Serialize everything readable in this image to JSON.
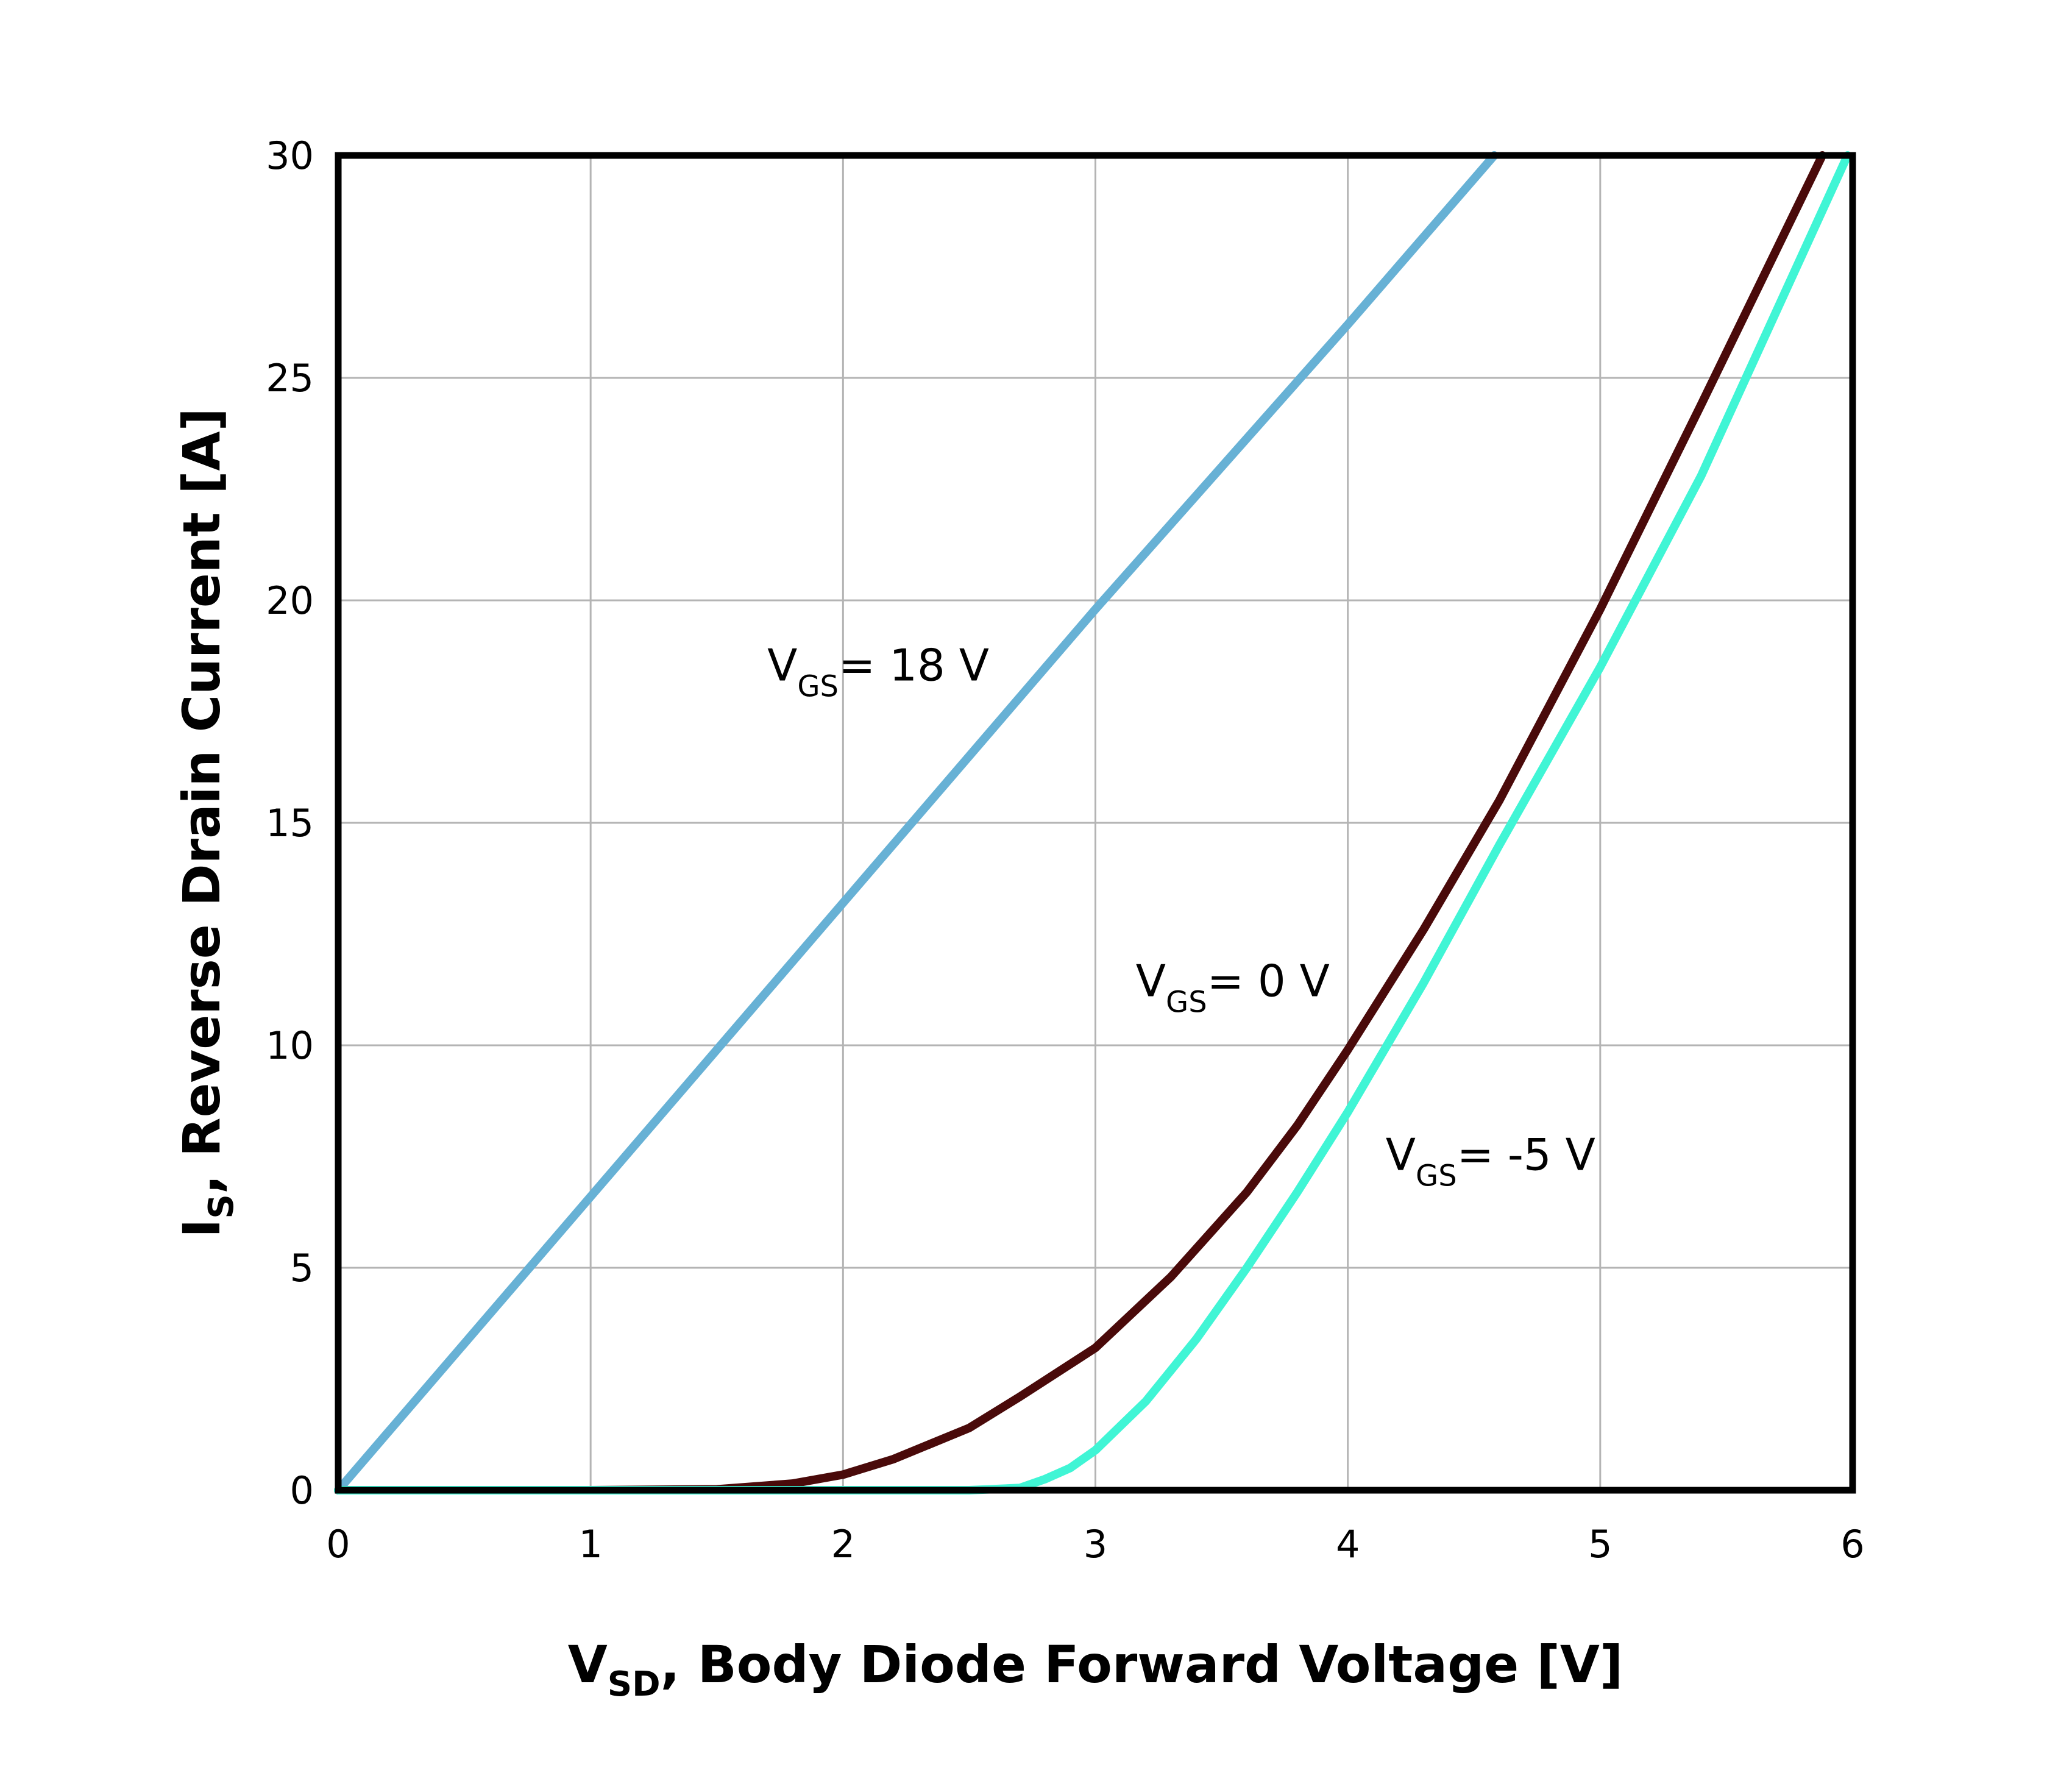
{
  "chart_data": {
    "type": "line",
    "title": "",
    "xlabel": {
      "main": "V",
      "sub": "SD",
      "rest": ", Body Diode Forward Voltage [V]"
    },
    "ylabel": {
      "main": "I",
      "sub": "S",
      "rest": ", Reverse Drain Current [A]"
    },
    "xlim": [
      0,
      6
    ],
    "ylim": [
      0,
      30
    ],
    "xticks": [
      0,
      1,
      2,
      3,
      4,
      5,
      6
    ],
    "yticks": [
      0,
      5,
      10,
      15,
      20,
      25,
      30
    ],
    "xtick_labels": [
      "0",
      "1",
      "2",
      "3",
      "4",
      "5",
      "6"
    ],
    "ytick_labels": [
      "0",
      "5",
      "10",
      "15",
      "20",
      "25",
      "30"
    ],
    "grid": true,
    "legend": "none",
    "series": [
      {
        "key": "vgs18",
        "color": "#67b1d5",
        "x": [
          0,
          1,
          2,
          3,
          4,
          4.58
        ],
        "y": [
          0,
          6.6,
          13.2,
          19.8,
          26.2,
          30
        ]
      },
      {
        "key": "vgs0",
        "color": "#4a0a0a",
        "x": [
          0,
          1,
          1.5,
          1.8,
          2.0,
          2.2,
          2.5,
          2.7,
          3.0,
          3.3,
          3.6,
          3.8,
          4.0,
          4.3,
          4.6,
          5.0,
          5.4,
          5.88
        ],
        "y": [
          0,
          0,
          0.02,
          0.15,
          0.35,
          0.7,
          1.4,
          2.1,
          3.2,
          4.8,
          6.7,
          8.2,
          9.9,
          12.6,
          15.5,
          19.8,
          24.4,
          30
        ]
      },
      {
        "key": "vgsm5",
        "color": "#40f5d5",
        "x": [
          0,
          2.0,
          2.5,
          2.7,
          2.8,
          2.9,
          3.0,
          3.2,
          3.4,
          3.6,
          3.8,
          4.0,
          4.3,
          4.6,
          5.0,
          5.4,
          5.98
        ],
        "y": [
          0,
          0,
          0,
          0.05,
          0.25,
          0.5,
          0.9,
          2.0,
          3.4,
          5.0,
          6.7,
          8.5,
          11.4,
          14.5,
          18.5,
          22.8,
          30
        ]
      }
    ],
    "annotations": [
      {
        "key": "vgs18",
        "main": "V",
        "sub": "GS",
        "text": "= 18 V",
        "x": 1.7,
        "y": 18.2
      },
      {
        "key": "vgs0",
        "main": "V",
        "sub": "GS",
        "text": "= 0 V",
        "x": 3.16,
        "y": 11.1
      },
      {
        "key": "vgsm5",
        "main": "V",
        "sub": "GS",
        "text": "= -5 V",
        "x": 4.15,
        "y": 7.2
      }
    ]
  }
}
